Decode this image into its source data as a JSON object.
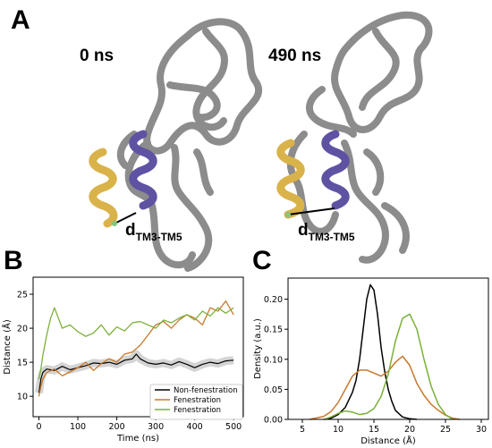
{
  "figure": {
    "panel_a": {
      "letter": "A",
      "left_label": "0 ns",
      "right_label": "490 ns",
      "distance_label_main": "d",
      "distance_label_sub": "TM3-TM5",
      "colors": {
        "backbone": "#8c8c8c",
        "tm3": "#d9b24a",
        "tm5": "#5e52a3",
        "marker": "#7fc77f"
      }
    },
    "panel_b": {
      "letter": "B"
    },
    "panel_c": {
      "letter": "C"
    }
  },
  "chart_data": [
    {
      "type": "line",
      "xlabel": "Time (ns)",
      "ylabel": "Distance (Å)",
      "xlim": [
        -15,
        525
      ],
      "ylim": [
        7,
        27.5
      ],
      "xticks": [
        0,
        100,
        200,
        300,
        400,
        500
      ],
      "yticks": [
        10,
        15,
        20,
        25
      ],
      "legend": "bottom-right",
      "grid": false,
      "series": [
        {
          "name": "Non-fenestration",
          "color": "#000000",
          "x": [
            0,
            5,
            10,
            20,
            40,
            60,
            80,
            100,
            120,
            140,
            160,
            180,
            200,
            220,
            240,
            250,
            260,
            280,
            300,
            320,
            340,
            360,
            380,
            400,
            420,
            440,
            460,
            480,
            500
          ],
          "y": [
            10.5,
            12.5,
            13.5,
            14.0,
            13.8,
            14.4,
            13.9,
            14.2,
            14.5,
            14.9,
            14.8,
            15.0,
            14.7,
            15.3,
            15.5,
            16.2,
            15.5,
            14.9,
            14.7,
            14.9,
            14.6,
            15.1,
            14.7,
            14.2,
            14.7,
            15.0,
            14.8,
            15.2,
            15.3
          ]
        },
        {
          "name": "Fenestration",
          "color": "#c8782a",
          "x": [
            0,
            5,
            10,
            20,
            40,
            60,
            80,
            100,
            120,
            140,
            160,
            180,
            200,
            220,
            240,
            260,
            280,
            300,
            320,
            340,
            360,
            380,
            400,
            420,
            440,
            460,
            480,
            500
          ],
          "y": [
            10.0,
            11.5,
            12.5,
            13.5,
            14.0,
            13.0,
            13.6,
            14.2,
            15.0,
            13.8,
            14.8,
            15.5,
            15.0,
            16.2,
            16.5,
            17.5,
            19.0,
            20.5,
            21.0,
            20.0,
            21.2,
            22.0,
            21.5,
            20.5,
            23.0,
            22.5,
            24.0,
            22.0
          ]
        },
        {
          "name": "Fenestration",
          "color": "#7bb03a",
          "x": [
            0,
            5,
            10,
            20,
            30,
            40,
            60,
            80,
            100,
            120,
            140,
            160,
            180,
            200,
            220,
            240,
            260,
            280,
            300,
            320,
            340,
            360,
            380,
            400,
            420,
            440,
            460,
            480,
            500
          ],
          "y": [
            12.5,
            14.0,
            16.0,
            19.0,
            21.5,
            23.0,
            20.0,
            20.5,
            19.5,
            18.8,
            19.3,
            20.5,
            19.0,
            20.2,
            19.6,
            20.8,
            21.0,
            20.5,
            20.0,
            21.2,
            20.8,
            21.5,
            22.0,
            21.2,
            22.5,
            21.8,
            23.0,
            22.2,
            23.0
          ]
        }
      ]
    },
    {
      "type": "line",
      "xlabel": "Distance (Å)",
      "ylabel": "Density (a.u.)",
      "xlim": [
        3,
        31
      ],
      "ylim": [
        0,
        0.235
      ],
      "xticks": [
        5,
        10,
        15,
        20,
        25,
        30
      ],
      "yticks": [
        0.0,
        0.05,
        0.1,
        0.15,
        0.2
      ],
      "grid": false,
      "series": [
        {
          "color": "#000000",
          "x": [
            8,
            9,
            10,
            11,
            12,
            12.5,
            13,
            13.5,
            14,
            14.5,
            15,
            15.5,
            16,
            16.5,
            17,
            17.5,
            18,
            19,
            20,
            21
          ],
          "y": [
            0.0,
            0.002,
            0.008,
            0.02,
            0.045,
            0.065,
            0.1,
            0.15,
            0.2,
            0.224,
            0.215,
            0.175,
            0.12,
            0.08,
            0.05,
            0.03,
            0.015,
            0.004,
            0.001,
            0.0
          ]
        },
        {
          "color": "#c8782a",
          "x": [
            6,
            8,
            9,
            10,
            11,
            12,
            13,
            14,
            15,
            16,
            17,
            18,
            19,
            20,
            21,
            22,
            23,
            24,
            25,
            26,
            27
          ],
          "y": [
            0.0,
            0.005,
            0.013,
            0.028,
            0.05,
            0.072,
            0.082,
            0.082,
            0.077,
            0.072,
            0.08,
            0.095,
            0.105,
            0.09,
            0.06,
            0.04,
            0.025,
            0.015,
            0.007,
            0.002,
            0.0
          ]
        },
        {
          "color": "#7bb03a",
          "x": [
            8,
            9,
            10,
            11,
            12,
            13,
            14,
            15,
            16,
            17,
            18,
            19,
            20,
            21,
            22,
            23,
            24,
            25,
            26
          ],
          "y": [
            0.0,
            0.004,
            0.01,
            0.014,
            0.012,
            0.008,
            0.01,
            0.018,
            0.038,
            0.075,
            0.13,
            0.168,
            0.175,
            0.15,
            0.1,
            0.055,
            0.025,
            0.008,
            0.0
          ]
        }
      ]
    }
  ]
}
